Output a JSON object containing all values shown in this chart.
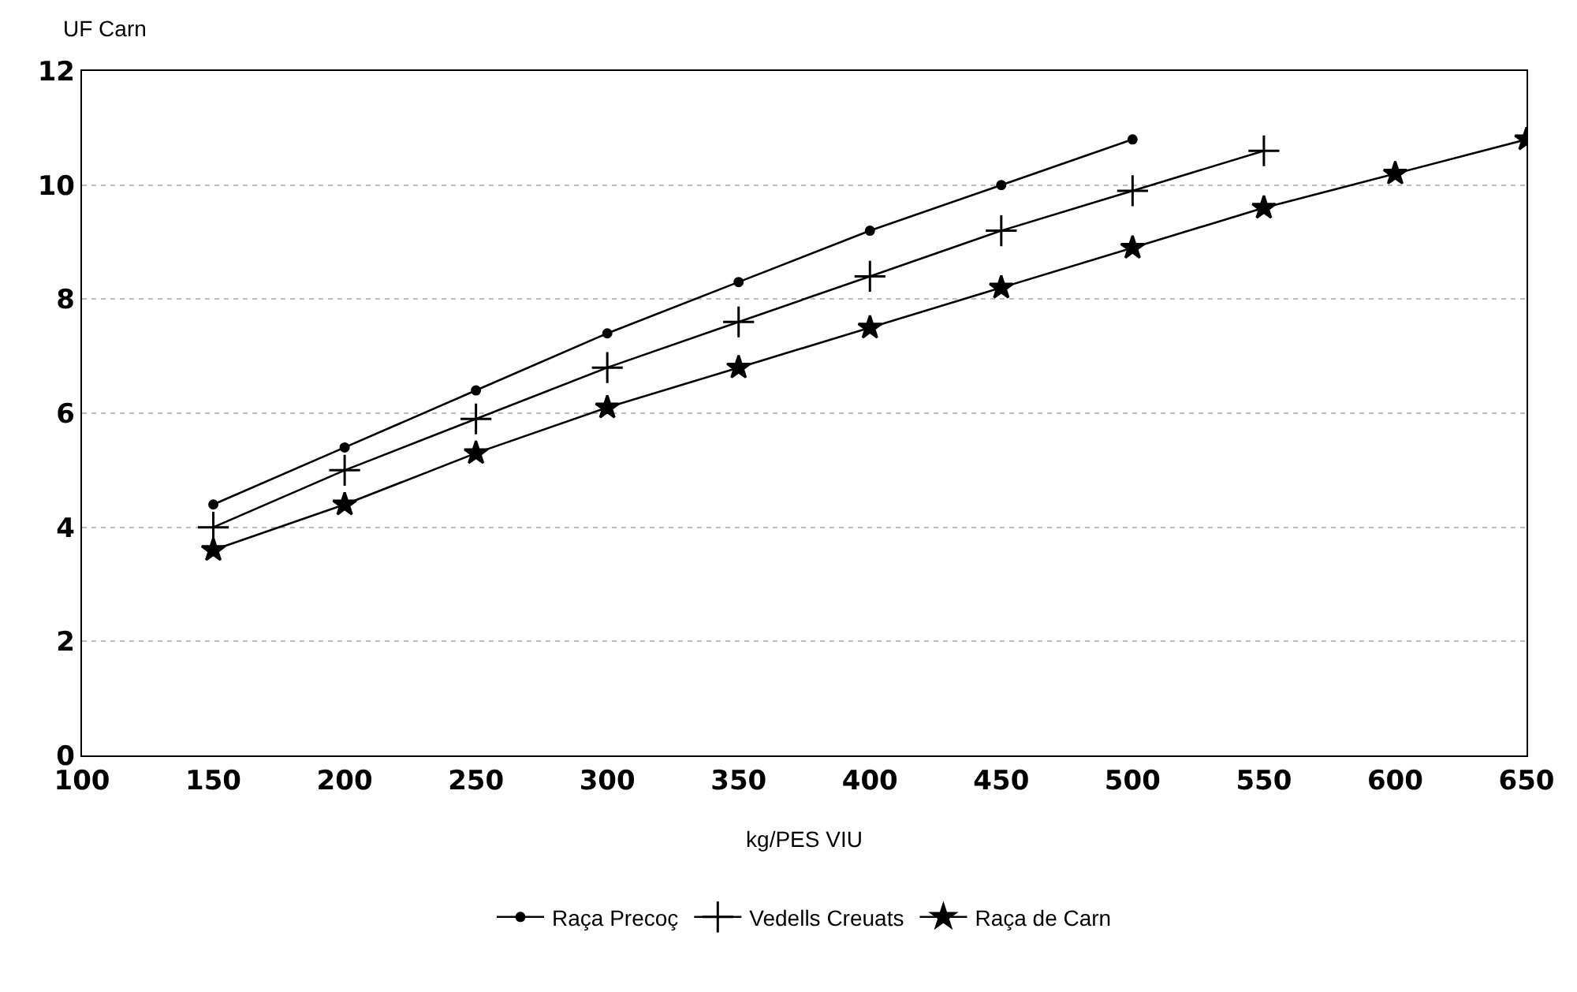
{
  "chart_data": {
    "type": "line",
    "xlabel": "kg/PES VIU",
    "ylabel": "UF Carn",
    "xlim": [
      100,
      650
    ],
    "xticks": [
      100,
      150,
      200,
      250,
      300,
      350,
      400,
      450,
      500,
      550,
      600,
      650
    ],
    "ylim": [
      0,
      12
    ],
    "yticks": [
      0,
      2,
      4,
      6,
      8,
      10,
      12
    ],
    "grid": "y",
    "legend": "bottom",
    "line_style": "solid",
    "series": [
      {
        "name": "Raça Precoç",
        "color": "#000000",
        "marker": "circle",
        "x": [
          150,
          200,
          250,
          300,
          350,
          400,
          450,
          500
        ],
        "values": [
          4.4,
          5.4,
          6.4,
          7.4,
          8.3,
          9.2,
          10.0,
          10.8
        ]
      },
      {
        "name": "Vedells Creuats",
        "color": "#000000",
        "marker": "cross",
        "x": [
          150,
          200,
          250,
          300,
          350,
          400,
          450,
          500,
          550
        ],
        "values": [
          4.0,
          5.0,
          5.9,
          6.8,
          7.6,
          8.4,
          9.2,
          9.9,
          10.6
        ]
      },
      {
        "name": "Raça de Carn",
        "color": "#000000",
        "marker": "star",
        "x": [
          150,
          200,
          250,
          300,
          350,
          400,
          450,
          500,
          550,
          600,
          650
        ],
        "values": [
          3.6,
          4.4,
          5.3,
          6.1,
          6.8,
          7.5,
          8.2,
          8.9,
          9.6,
          10.2,
          10.8
        ]
      }
    ]
  }
}
